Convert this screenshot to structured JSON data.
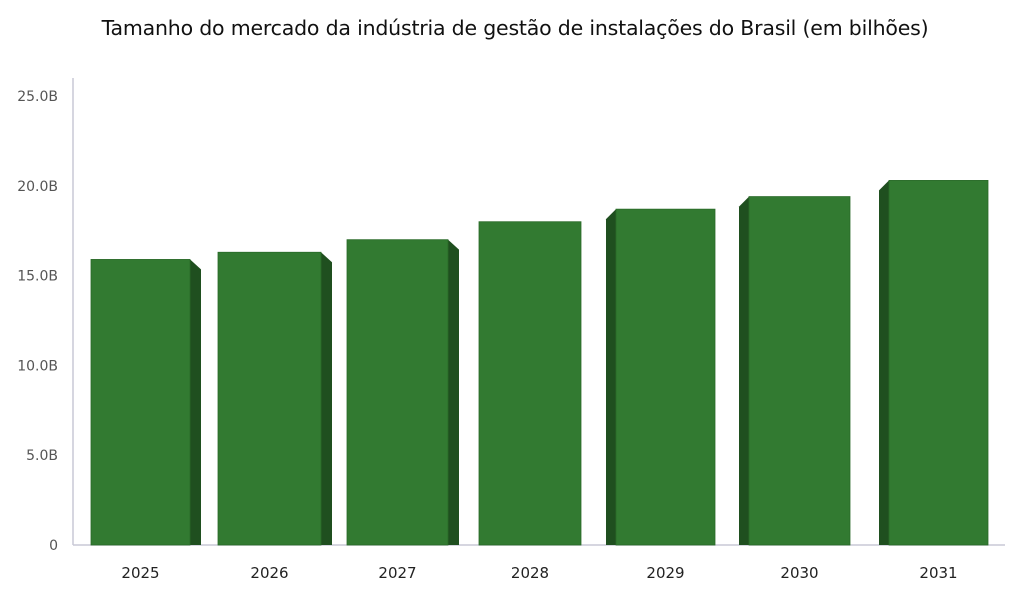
{
  "chart_data": {
    "type": "bar",
    "title": "Tamanho do mercado da indústria de gestão de instalações do Brasil (em bilhões)",
    "xlabel": "",
    "ylabel": "",
    "categories": [
      "2025",
      "2026",
      "2027",
      "2028",
      "2029",
      "2030",
      "2031"
    ],
    "values": [
      15.9,
      16.3,
      17.0,
      18.0,
      18.7,
      19.4,
      20.3
    ],
    "ylim": [
      0,
      25
    ],
    "yticks": [
      "0",
      "5.0B",
      "10.0B",
      "15.0B",
      "20.0B",
      "25.0B"
    ],
    "grid": false,
    "colors": {
      "front": "#327a31",
      "side": "#1f4f1f",
      "axis": "#c9c9d6"
    }
  }
}
